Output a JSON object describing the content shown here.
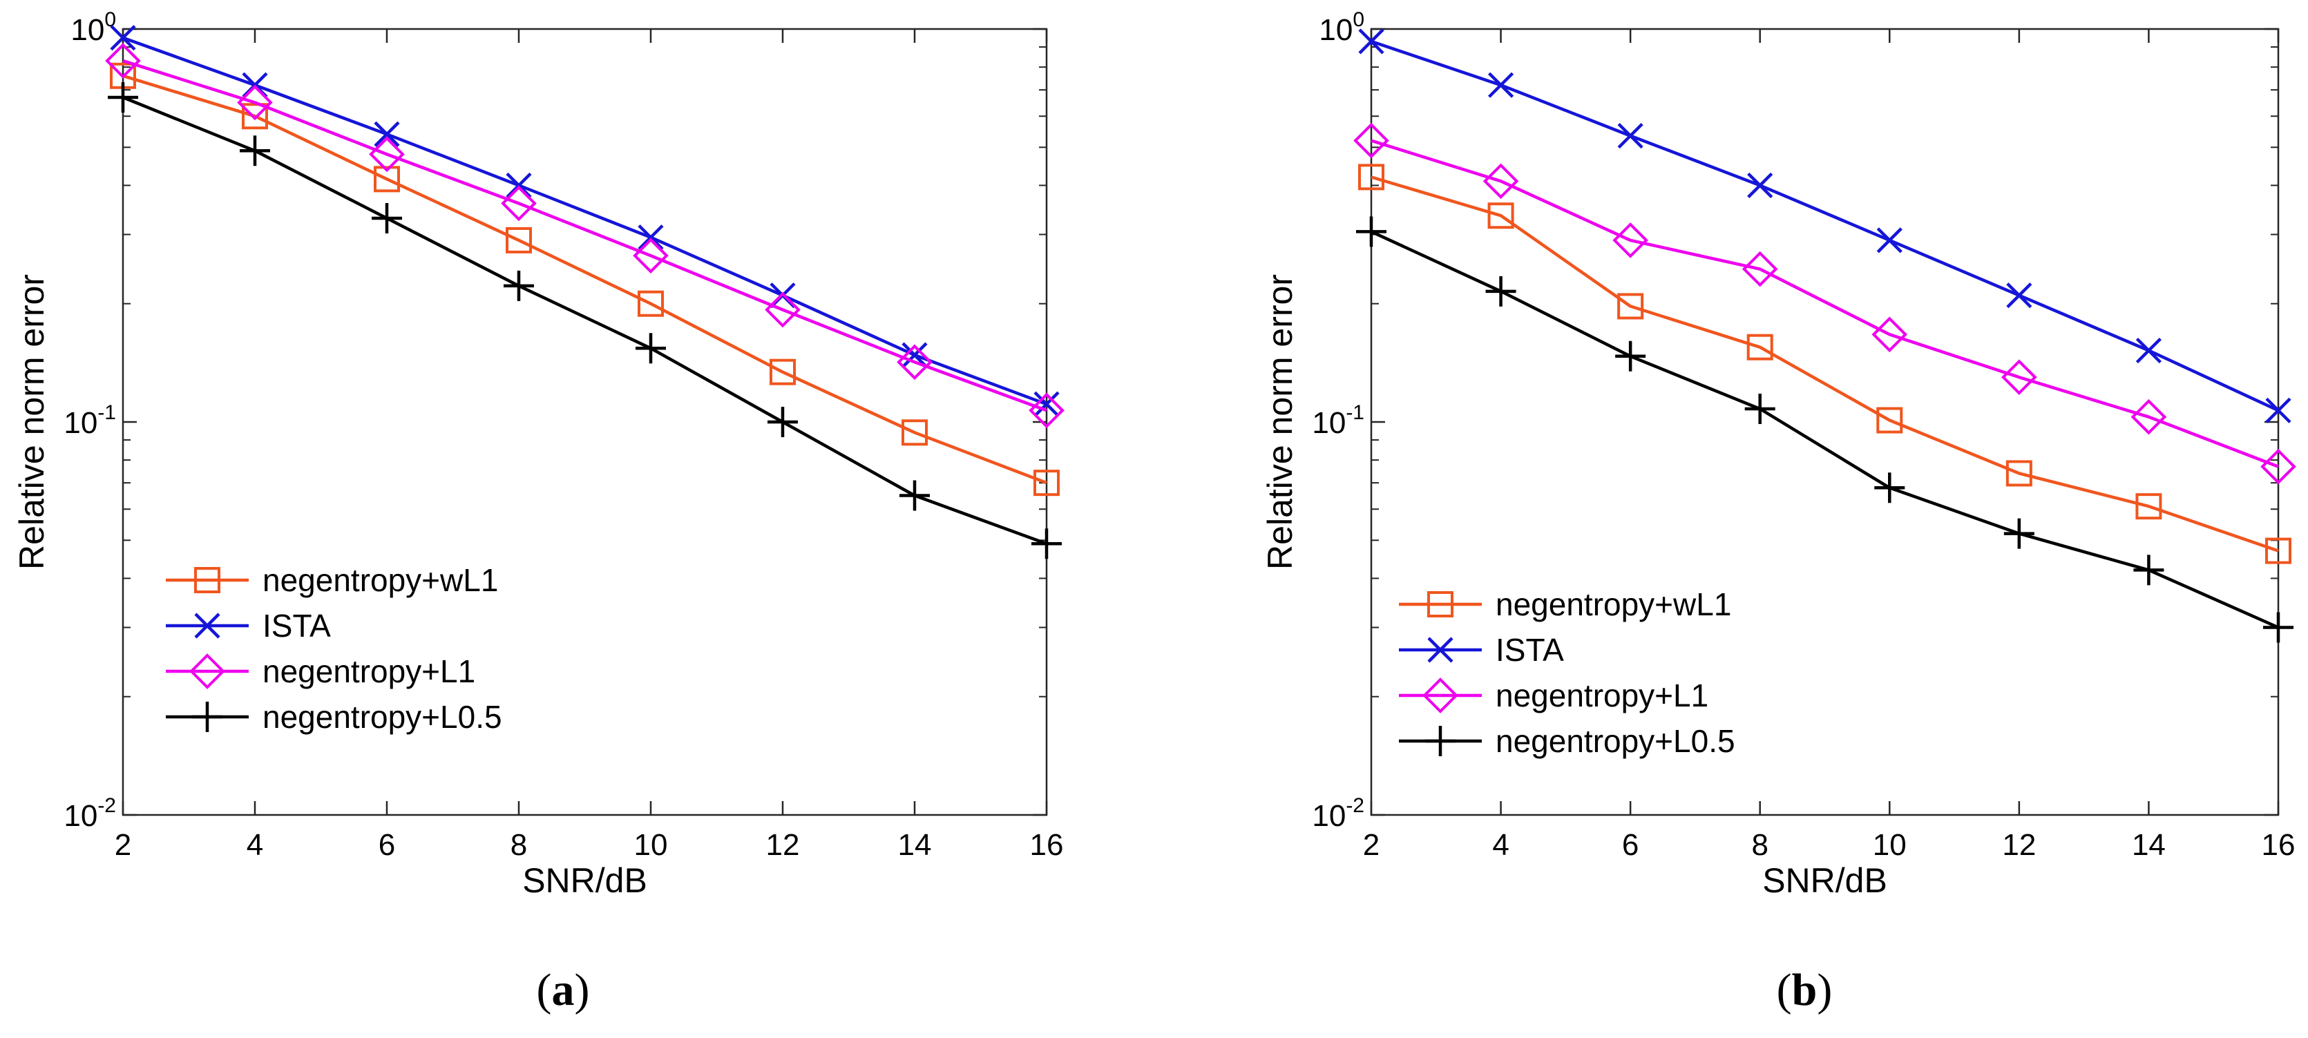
{
  "chart_data": [
    {
      "type": "line",
      "panel_label": "a",
      "xlabel": "SNR/dB",
      "ylabel": "Relative norm error",
      "yscale": "log",
      "xlim": [
        2,
        16
      ],
      "ylim": [
        0.01,
        1
      ],
      "x": [
        2,
        4,
        6,
        8,
        10,
        12,
        14,
        16
      ],
      "xticklabels": [
        "2",
        "4",
        "6",
        "8",
        "10",
        "12",
        "14",
        "16"
      ],
      "yticks": [
        {
          "value": 1,
          "base": "10",
          "exp": "0"
        },
        {
          "value": 0.1,
          "base": "10",
          "exp": "-1"
        },
        {
          "value": 0.01,
          "base": "10",
          "exp": "-2"
        }
      ],
      "legend_position": "bottom-left",
      "series": [
        {
          "name": "negentropy+wL1",
          "color": "#F0561E",
          "marker": "square",
          "values": [
            0.76,
            0.6,
            0.415,
            0.29,
            0.2,
            0.134,
            0.094,
            0.07
          ]
        },
        {
          "name": "ISTA",
          "color": "#1515D8",
          "marker": "x",
          "values": [
            0.95,
            0.72,
            0.54,
            0.4,
            0.295,
            0.21,
            0.148,
            0.111
          ]
        },
        {
          "name": "negentropy+L1",
          "color": "#EE00EE",
          "marker": "diamond",
          "values": [
            0.83,
            0.65,
            0.48,
            0.36,
            0.265,
            0.193,
            0.142,
            0.107
          ]
        },
        {
          "name": "negentropy+L0.5",
          "color": "#000000",
          "marker": "plus",
          "values": [
            0.67,
            0.49,
            0.33,
            0.222,
            0.154,
            0.1,
            0.065,
            0.049
          ]
        }
      ]
    },
    {
      "type": "line",
      "panel_label": "b",
      "xlabel": "SNR/dB",
      "ylabel": "Relative norm error",
      "yscale": "log",
      "xlim": [
        2,
        16
      ],
      "ylim": [
        0.01,
        1
      ],
      "x": [
        2,
        4,
        6,
        8,
        10,
        12,
        14,
        16
      ],
      "xticklabels": [
        "2",
        "4",
        "6",
        "8",
        "10",
        "12",
        "14",
        "16"
      ],
      "yticks": [
        {
          "value": 1,
          "base": "10",
          "exp": "0"
        },
        {
          "value": 0.1,
          "base": "10",
          "exp": "-1"
        },
        {
          "value": 0.01,
          "base": "10",
          "exp": "-2"
        }
      ],
      "legend_position": "bottom-left",
      "series": [
        {
          "name": "negentropy+wL1",
          "color": "#F0561E",
          "marker": "square",
          "values": [
            0.42,
            0.335,
            0.197,
            0.155,
            0.101,
            0.074,
            0.061,
            0.047
          ]
        },
        {
          "name": "ISTA",
          "color": "#1515D8",
          "marker": "x",
          "values": [
            0.93,
            0.72,
            0.535,
            0.4,
            0.29,
            0.21,
            0.152,
            0.107
          ]
        },
        {
          "name": "negentropy+L1",
          "color": "#EE00EE",
          "marker": "diamond",
          "values": [
            0.52,
            0.41,
            0.29,
            0.245,
            0.167,
            0.13,
            0.103,
            0.077
          ]
        },
        {
          "name": "negentropy+L0.5",
          "color": "#000000",
          "marker": "plus",
          "values": [
            0.305,
            0.215,
            0.147,
            0.108,
            0.068,
            0.052,
            0.042,
            0.03
          ]
        }
      ]
    }
  ]
}
